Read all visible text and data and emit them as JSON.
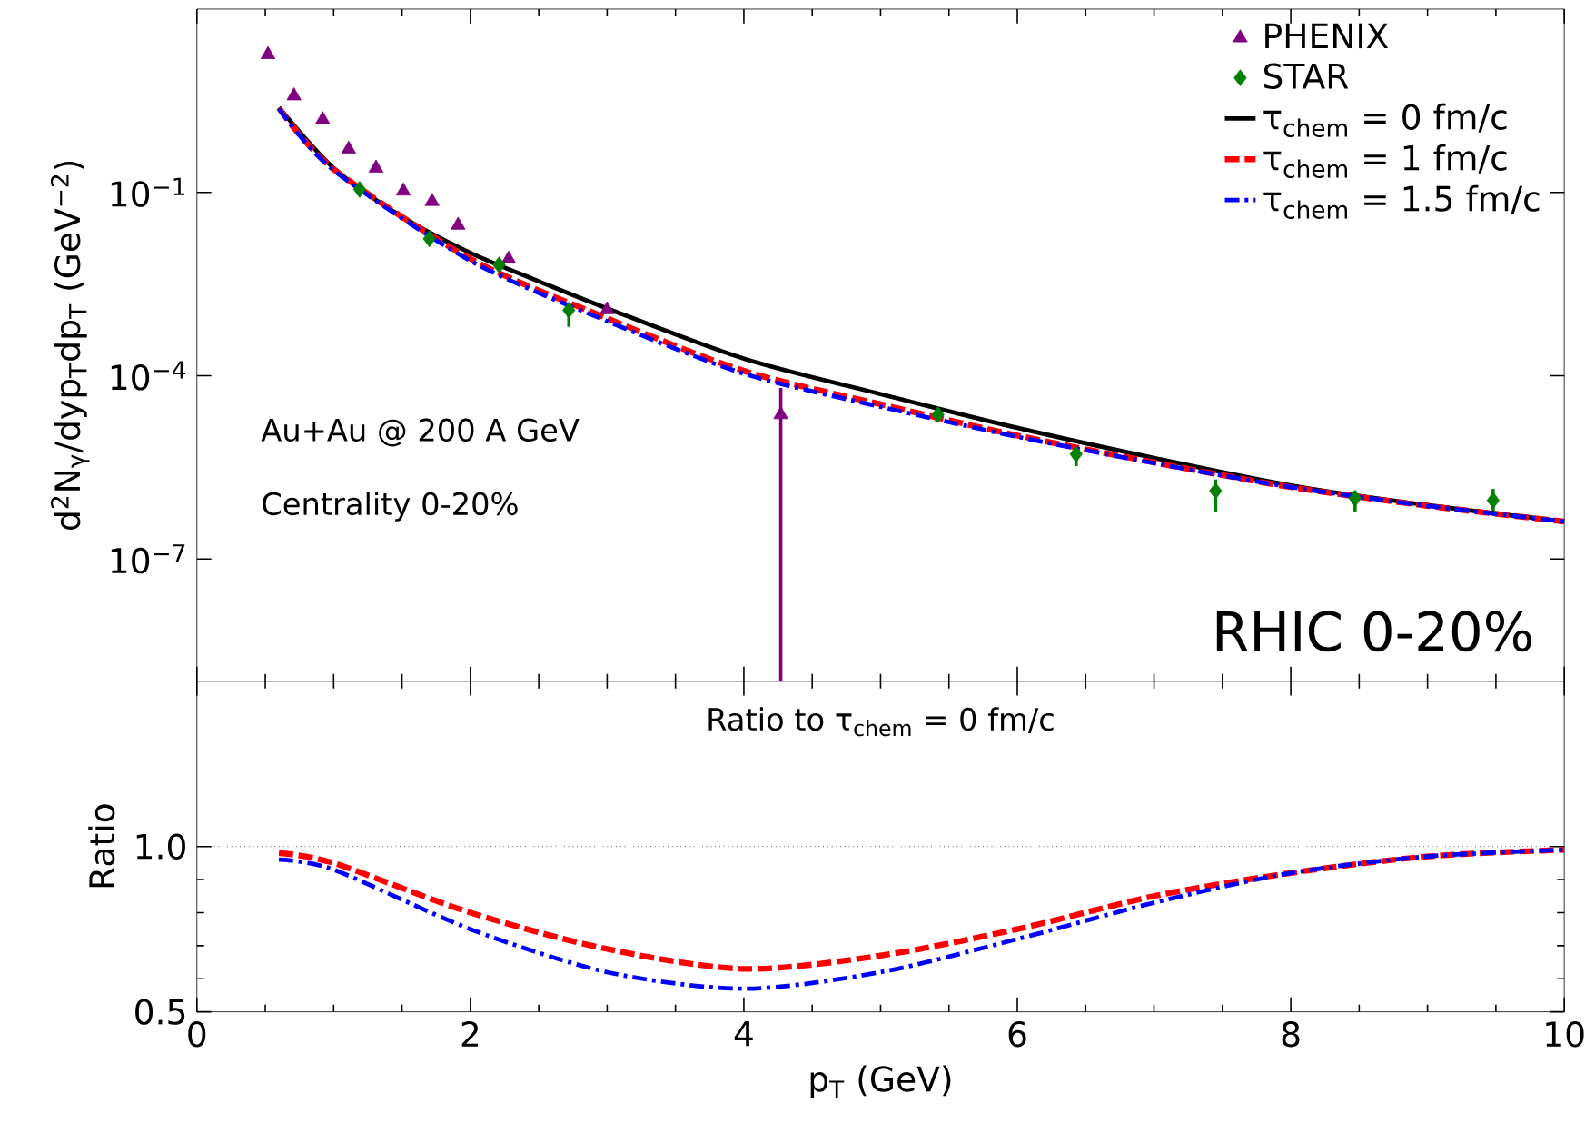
{
  "chart_data": [
    {
      "type": "line",
      "ylabel": "d$^{2}$N$_{γ}$/dyp$_{T}$dp$_{T}$ (GeV$^{−2}$)",
      "xlim": [
        0,
        10
      ],
      "xticks": [
        0,
        2,
        4,
        6,
        8,
        10
      ],
      "ylim": [
        1e-09,
        100
      ],
      "log": "y",
      "yticks": [
        {
          "value": 1e-07,
          "label": "10$^{−7}$"
        },
        {
          "value": 0.0001,
          "label": "10$^{−4}$"
        },
        {
          "value": 0.1,
          "label": "10$^{−1}$"
        }
      ],
      "tick_labels": "y",
      "legend": "top right",
      "grid": false,
      "annotations": [
        "Au+Au @ 200 A GeV",
        "Centrality 0-20%",
        "RHIC 0-20%"
      ],
      "series": [
        {
          "name": "PHENIX",
          "type": "scatter",
          "marker": "triangle",
          "color": "#800080",
          "x": [
            0.52,
            0.71,
            0.92,
            1.11,
            1.31,
            1.51,
            1.72,
            1.91,
            2.28,
            3.0,
            4.27
          ],
          "values": [
            18,
            3.8,
            1.55,
            0.51,
            0.25,
            0.105,
            0.071,
            0.029,
            0.0081,
            0.0012,
            2.3e-05
          ],
          "errors": [
            null,
            null,
            null,
            null,
            null,
            null,
            null,
            null,
            null,
            null,
            [
              1e-09,
              6.3e-05
            ]
          ]
        },
        {
          "name": "STAR",
          "type": "scatter",
          "marker": "diamond",
          "color": "#008000",
          "x": [
            1.19,
            1.7,
            2.21,
            2.72,
            5.42,
            6.43,
            7.45,
            8.47,
            9.48
          ],
          "values": [
            0.112,
            0.0174,
            0.0065,
            0.00118,
            2.3e-05,
            5.2e-06,
            1.3e-06,
            9.8e-07,
            9.1e-07
          ],
          "errors": [
            null,
            null,
            null,
            [
              0.00063,
              0.0015
            ],
            null,
            [
              3.3e-06,
              6.9e-06
            ],
            [
              5.8e-07,
              2e-06
            ],
            [
              5.8e-07,
              1.3e-06
            ],
            [
              5.8e-07,
              1.4e-06
            ]
          ]
        },
        {
          "name": "τ$_{chem}$ = 0 fm/c",
          "type": "line",
          "line_style": "solid",
          "color": "#000000",
          "x": [
            0.6,
            1,
            1.5,
            2,
            2.5,
            3,
            4,
            5,
            6,
            7,
            8,
            9,
            10
          ],
          "values": [
            2.45,
            0.25,
            0.04,
            0.0102,
            0.0035,
            0.00126,
            0.00019,
            5e-05,
            1.4e-05,
            4.5e-06,
            1.6e-06,
            7.6e-07,
            4.1e-07
          ]
        },
        {
          "name": "τ$_{chem}$ = 1 fm/c",
          "type": "line",
          "line_style": "dashed",
          "color": "#ff0000",
          "x": [
            0.6,
            1,
            2,
            3,
            4,
            5,
            6,
            7,
            8,
            9,
            10
          ],
          "values": [
            2.4,
            0.24,
            0.0082,
            0.00087,
            0.00012,
            3.4e-05,
            1.05e-05,
            3.8e-06,
            1.5e-06,
            7.4e-07,
            4.1e-07
          ]
        },
        {
          "name": "τ$_{chem}$ = 1.5 fm/c",
          "type": "line",
          "line_style": "dashdot",
          "color": "#0000ff",
          "x": [
            0.6,
            1,
            2,
            3,
            4,
            5,
            6,
            7,
            8,
            9,
            10
          ],
          "values": [
            2.35,
            0.23,
            0.0076,
            0.00078,
            0.000108,
            3.1e-05,
            1e-05,
            3.7e-06,
            1.5e-06,
            7.4e-07,
            4.1e-07
          ]
        }
      ]
    },
    {
      "type": "line",
      "title": "Ratio to τ$_{chem}$ = 0 fm/c",
      "xlabel": "p$_{T}$ (GeV)",
      "ylabel": "Ratio",
      "xlim": [
        0,
        10
      ],
      "xticks": [
        0,
        2,
        4,
        6,
        8,
        10
      ],
      "ylim": [
        0.5,
        1.5
      ],
      "yticks": [
        {
          "value": 0.5,
          "label": "0.5"
        },
        {
          "value": 1,
          "label": "1.0"
        }
      ],
      "grid": false,
      "ref_lines": [
        {
          "axis": "y",
          "value": 1,
          "line_style": "dotted",
          "color": "#000000"
        }
      ],
      "series": [
        {
          "type": "line",
          "line_style": "dashed",
          "color": "#ff0000",
          "x": [
            0.6,
            1,
            2,
            3,
            4,
            5,
            6,
            7,
            8,
            9,
            10
          ],
          "values": [
            0.98,
            0.95,
            0.8,
            0.69,
            0.63,
            0.67,
            0.75,
            0.85,
            0.92,
            0.97,
            0.99
          ]
        },
        {
          "type": "line",
          "line_style": "dashdot",
          "color": "#0000ff",
          "x": [
            0.6,
            1,
            2,
            3,
            4,
            5,
            6,
            7,
            8,
            9,
            10
          ],
          "values": [
            0.96,
            0.93,
            0.75,
            0.62,
            0.57,
            0.62,
            0.72,
            0.83,
            0.92,
            0.97,
            0.99
          ]
        }
      ]
    }
  ]
}
